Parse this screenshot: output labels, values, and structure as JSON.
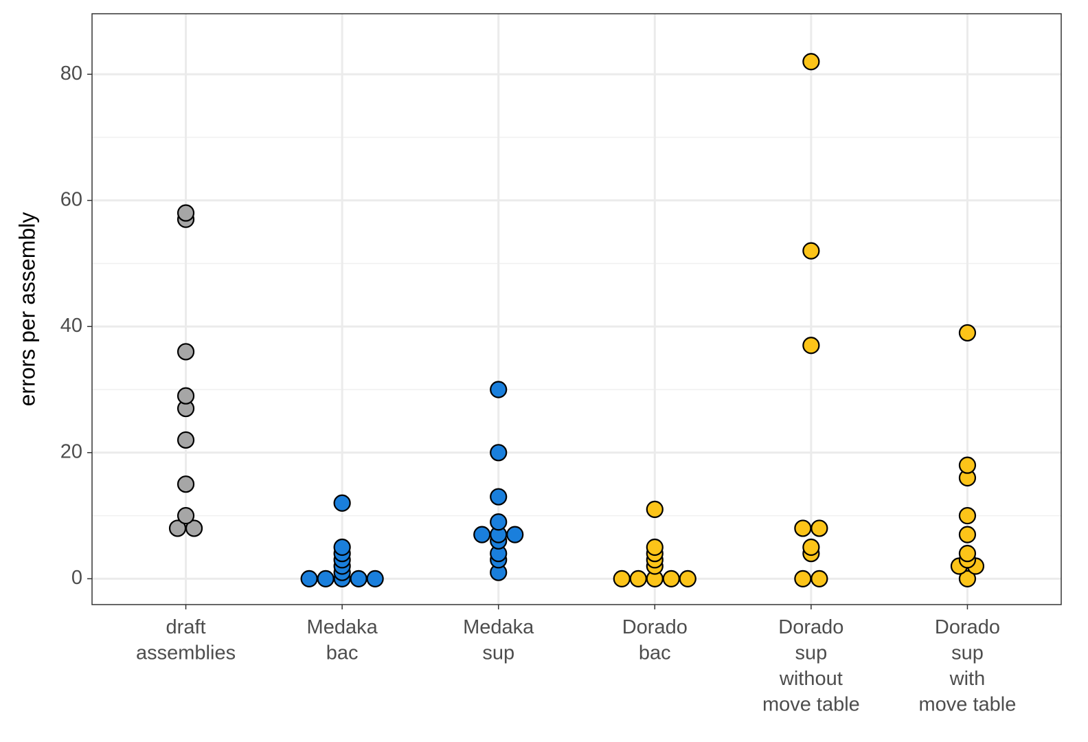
{
  "chart_data": {
    "type": "dotplot",
    "y_label": "errors per assembly",
    "categories": [
      "draft\nassemblies",
      "Medaka\nbac",
      "Medaka\nsup",
      "Dorado\nbac",
      "Dorado\nsup\nwithout\nmove table",
      "Dorado\nsup\nwith\nmove table"
    ],
    "colors": [
      "#a6a6a6",
      "#1a7fdc",
      "#1a7fdc",
      "#fcc419",
      "#fcc419",
      "#fcc419"
    ],
    "values": [
      [
        8,
        8,
        10,
        15,
        22,
        27,
        29,
        36,
        57,
        58
      ],
      [
        0,
        0,
        0,
        0,
        0,
        1,
        2,
        3,
        4,
        5,
        12
      ],
      [
        1,
        3,
        4,
        6,
        7,
        7,
        7,
        9,
        13,
        20,
        30
      ],
      [
        0,
        0,
        0,
        0,
        0,
        2,
        3,
        4,
        5,
        11
      ],
      [
        0,
        0,
        4,
        5,
        8,
        8,
        37,
        52,
        82
      ],
      [
        0,
        2,
        2,
        3,
        4,
        7,
        10,
        16,
        18,
        39
      ]
    ],
    "ylim": [
      -4.1,
      89.6
    ],
    "yticks": [
      0,
      20,
      40,
      60,
      80
    ],
    "minor_yticks": [
      10,
      30,
      50,
      70
    ],
    "grid": true
  }
}
